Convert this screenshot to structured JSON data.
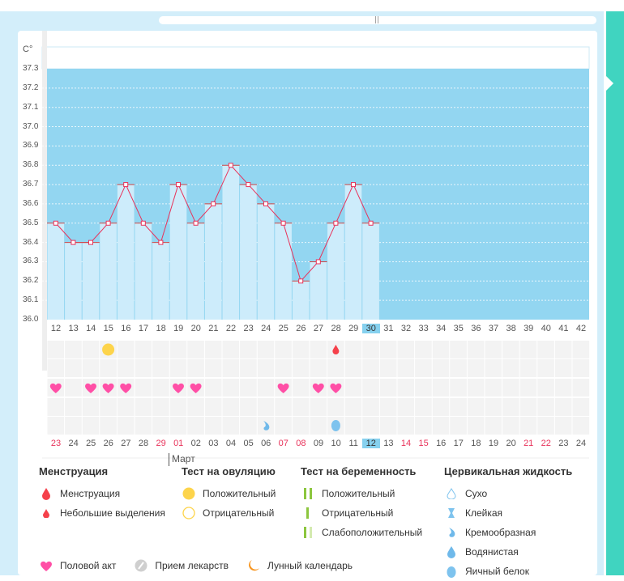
{
  "unit_label": "C°",
  "y_ticks": [
    "37.3",
    "37.2",
    "37.1",
    "37.0",
    "36.9",
    "36.8",
    "36.7",
    "36.6",
    "36.5",
    "36.4",
    "36.3",
    "36.2",
    "36.1",
    "36.0"
  ],
  "chart_data": {
    "type": "line",
    "ylim": [
      36.0,
      37.3
    ],
    "ylabel": "C°",
    "cycle_days": [
      12,
      13,
      14,
      15,
      16,
      17,
      18,
      19,
      20,
      21,
      22,
      23,
      24,
      25,
      26,
      27,
      28,
      29,
      30,
      31,
      32,
      33,
      34,
      35,
      36,
      37,
      38,
      39,
      40,
      41,
      42
    ],
    "temperatures": [
      36.5,
      36.4,
      36.4,
      36.5,
      36.7,
      36.5,
      36.4,
      36.7,
      36.5,
      36.6,
      36.8,
      36.7,
      36.6,
      36.5,
      36.2,
      36.3,
      36.5,
      36.7,
      36.5
    ],
    "current_day": 30
  },
  "dates": [
    "23",
    "24",
    "25",
    "26",
    "27",
    "28",
    "29",
    "01",
    "02",
    "03",
    "04",
    "05",
    "06",
    "07",
    "08",
    "09",
    "10",
    "11",
    "12",
    "13",
    "14",
    "15",
    "16",
    "17",
    "18",
    "19",
    "20",
    "21",
    "22",
    "23",
    "24"
  ],
  "red_dates": [
    0,
    6,
    7,
    13,
    14,
    20,
    21,
    27,
    28
  ],
  "today_index": 18,
  "month_label": "Март",
  "marks": {
    "ovulation_positive": [
      15
    ],
    "light_bleeding": [
      28
    ],
    "intercourse": [
      12,
      14,
      15,
      16,
      19,
      20,
      25,
      27,
      28
    ],
    "creamy": [
      24
    ],
    "egg_white": [
      28
    ]
  },
  "legend": {
    "menstruation": {
      "title": "Менструация",
      "items": [
        "Менструация",
        "Небольшие выделения"
      ]
    },
    "ovulation": {
      "title": "Тест на овуляцию",
      "items": [
        "Положительный",
        "Отрицательный"
      ]
    },
    "pregnancy": {
      "title": "Тест на беременность",
      "items": [
        "Положительный",
        "Отрицательный",
        "Слабоположительный"
      ]
    },
    "fluid": {
      "title": "Цервикальная жидкость",
      "items": [
        "Сухо",
        "Клейкая",
        "Кремообразная",
        "Водянистая",
        "Яичный белок"
      ]
    },
    "other": [
      "Половой акт",
      "Прием лекарств",
      "Лунный календарь"
    ]
  },
  "colors": {
    "plot_bg": "#93d6f1",
    "bar": "#cdecfb",
    "line": "#e8325a",
    "teal": "#40d4c0",
    "heart": "#ff4fa6"
  }
}
